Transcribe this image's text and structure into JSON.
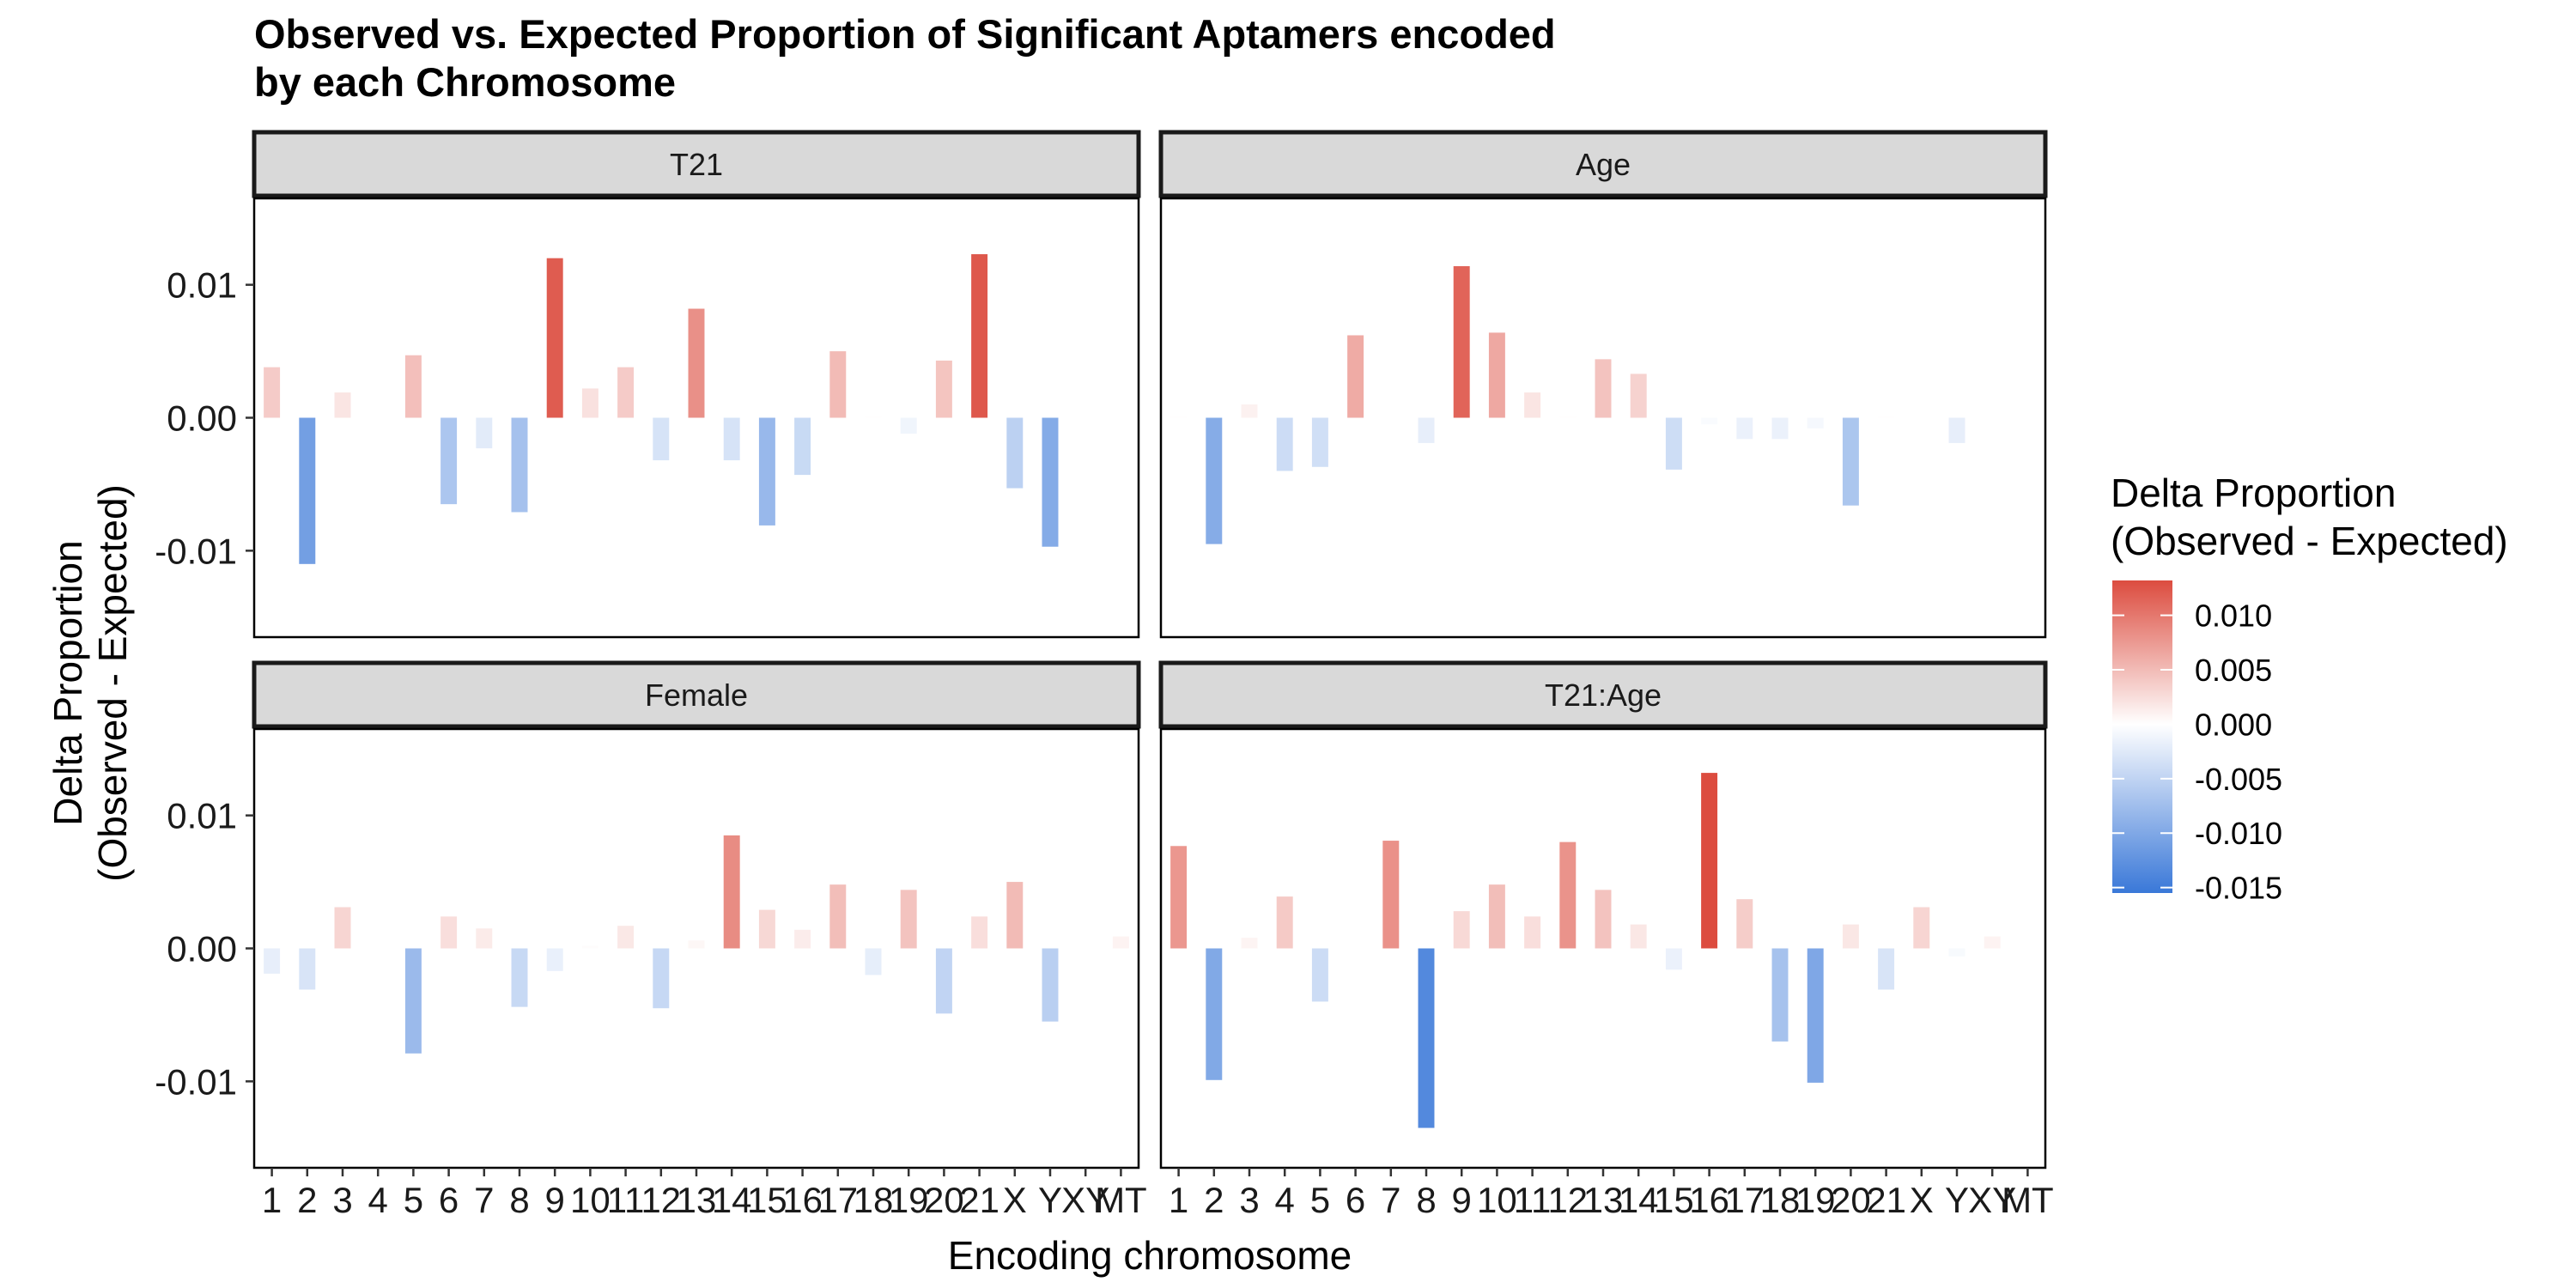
{
  "chart_data": {
    "type": "bar",
    "title_lines": [
      "Observed vs. Expected Proportion of Significant Aptamers encoded",
      "by each Chromosome"
    ],
    "xlabel": "Encoding chromosome",
    "ylabel_lines": [
      "Delta Proportion",
      "(Observed - Expected)"
    ],
    "ylim": [
      -0.0165,
      0.0165
    ],
    "yticks": [
      -0.01,
      0.0,
      0.01
    ],
    "ytick_labels": [
      "-0.01",
      "0.00",
      "0.01"
    ],
    "categories": [
      "1",
      "2",
      "3",
      "4",
      "5",
      "6",
      "7",
      "8",
      "9",
      "10",
      "11",
      "12",
      "13",
      "14",
      "15",
      "16",
      "17",
      "18",
      "19",
      "20",
      "21",
      "X",
      "Y",
      "XY",
      "MT"
    ],
    "facets": [
      {
        "name": "T21",
        "values": [
          0.0038,
          -0.011,
          0.0019,
          0.0,
          0.0047,
          -0.0065,
          -0.0023,
          -0.0071,
          0.012,
          0.0022,
          0.0038,
          -0.0032,
          0.0082,
          -0.0032,
          -0.0081,
          -0.0043,
          0.005,
          0.0001,
          -0.0012,
          0.0043,
          0.0123,
          -0.0053,
          -0.0097,
          0.0,
          0.0
        ]
      },
      {
        "name": "Age",
        "values": [
          0.0001,
          -0.0095,
          0.001,
          -0.004,
          -0.0037,
          0.0062,
          0.0,
          -0.0019,
          0.0114,
          0.0064,
          0.0019,
          0.0001,
          0.0044,
          0.0033,
          -0.0039,
          -0.0005,
          -0.0016,
          -0.0016,
          -0.0008,
          -0.0066,
          0.0001,
          0.0,
          -0.0019,
          0.0,
          0.0
        ]
      },
      {
        "name": "Female",
        "values": [
          -0.0019,
          -0.0031,
          0.0031,
          0.0,
          -0.0079,
          0.0024,
          0.0015,
          -0.0044,
          -0.0017,
          0.0002,
          0.0017,
          -0.0045,
          0.0006,
          0.0085,
          0.0029,
          0.0014,
          0.0048,
          -0.002,
          0.0044,
          -0.0049,
          0.0024,
          0.005,
          -0.0055,
          0.0,
          0.0009
        ]
      },
      {
        "name": "T21:Age",
        "values": [
          0.0077,
          -0.0099,
          0.0008,
          0.0039,
          -0.004,
          0.0,
          0.0081,
          -0.0135,
          0.0028,
          0.0048,
          0.0024,
          0.008,
          0.0044,
          0.0018,
          -0.0016,
          0.0132,
          0.0037,
          -0.007,
          -0.0101,
          0.0018,
          -0.0031,
          0.0031,
          -0.0006,
          0.0009,
          0.0
        ]
      }
    ],
    "legend": {
      "title_lines": [
        "Delta Proportion",
        "(Observed - Expected)"
      ],
      "ticks": [
        0.01,
        0.005,
        0.0,
        -0.005,
        -0.01,
        -0.015
      ],
      "tick_labels": [
        "0.010",
        "0.005",
        "0.000",
        "-0.005",
        "-0.010",
        "-0.015"
      ],
      "range": [
        -0.0155,
        0.0132
      ],
      "placement": "right"
    },
    "colors": {
      "low": "#3a78d8",
      "mid": "#ffffff",
      "high": "#dc4c3f",
      "strip_bg": "#d9d9d9"
    },
    "grid": false
  }
}
